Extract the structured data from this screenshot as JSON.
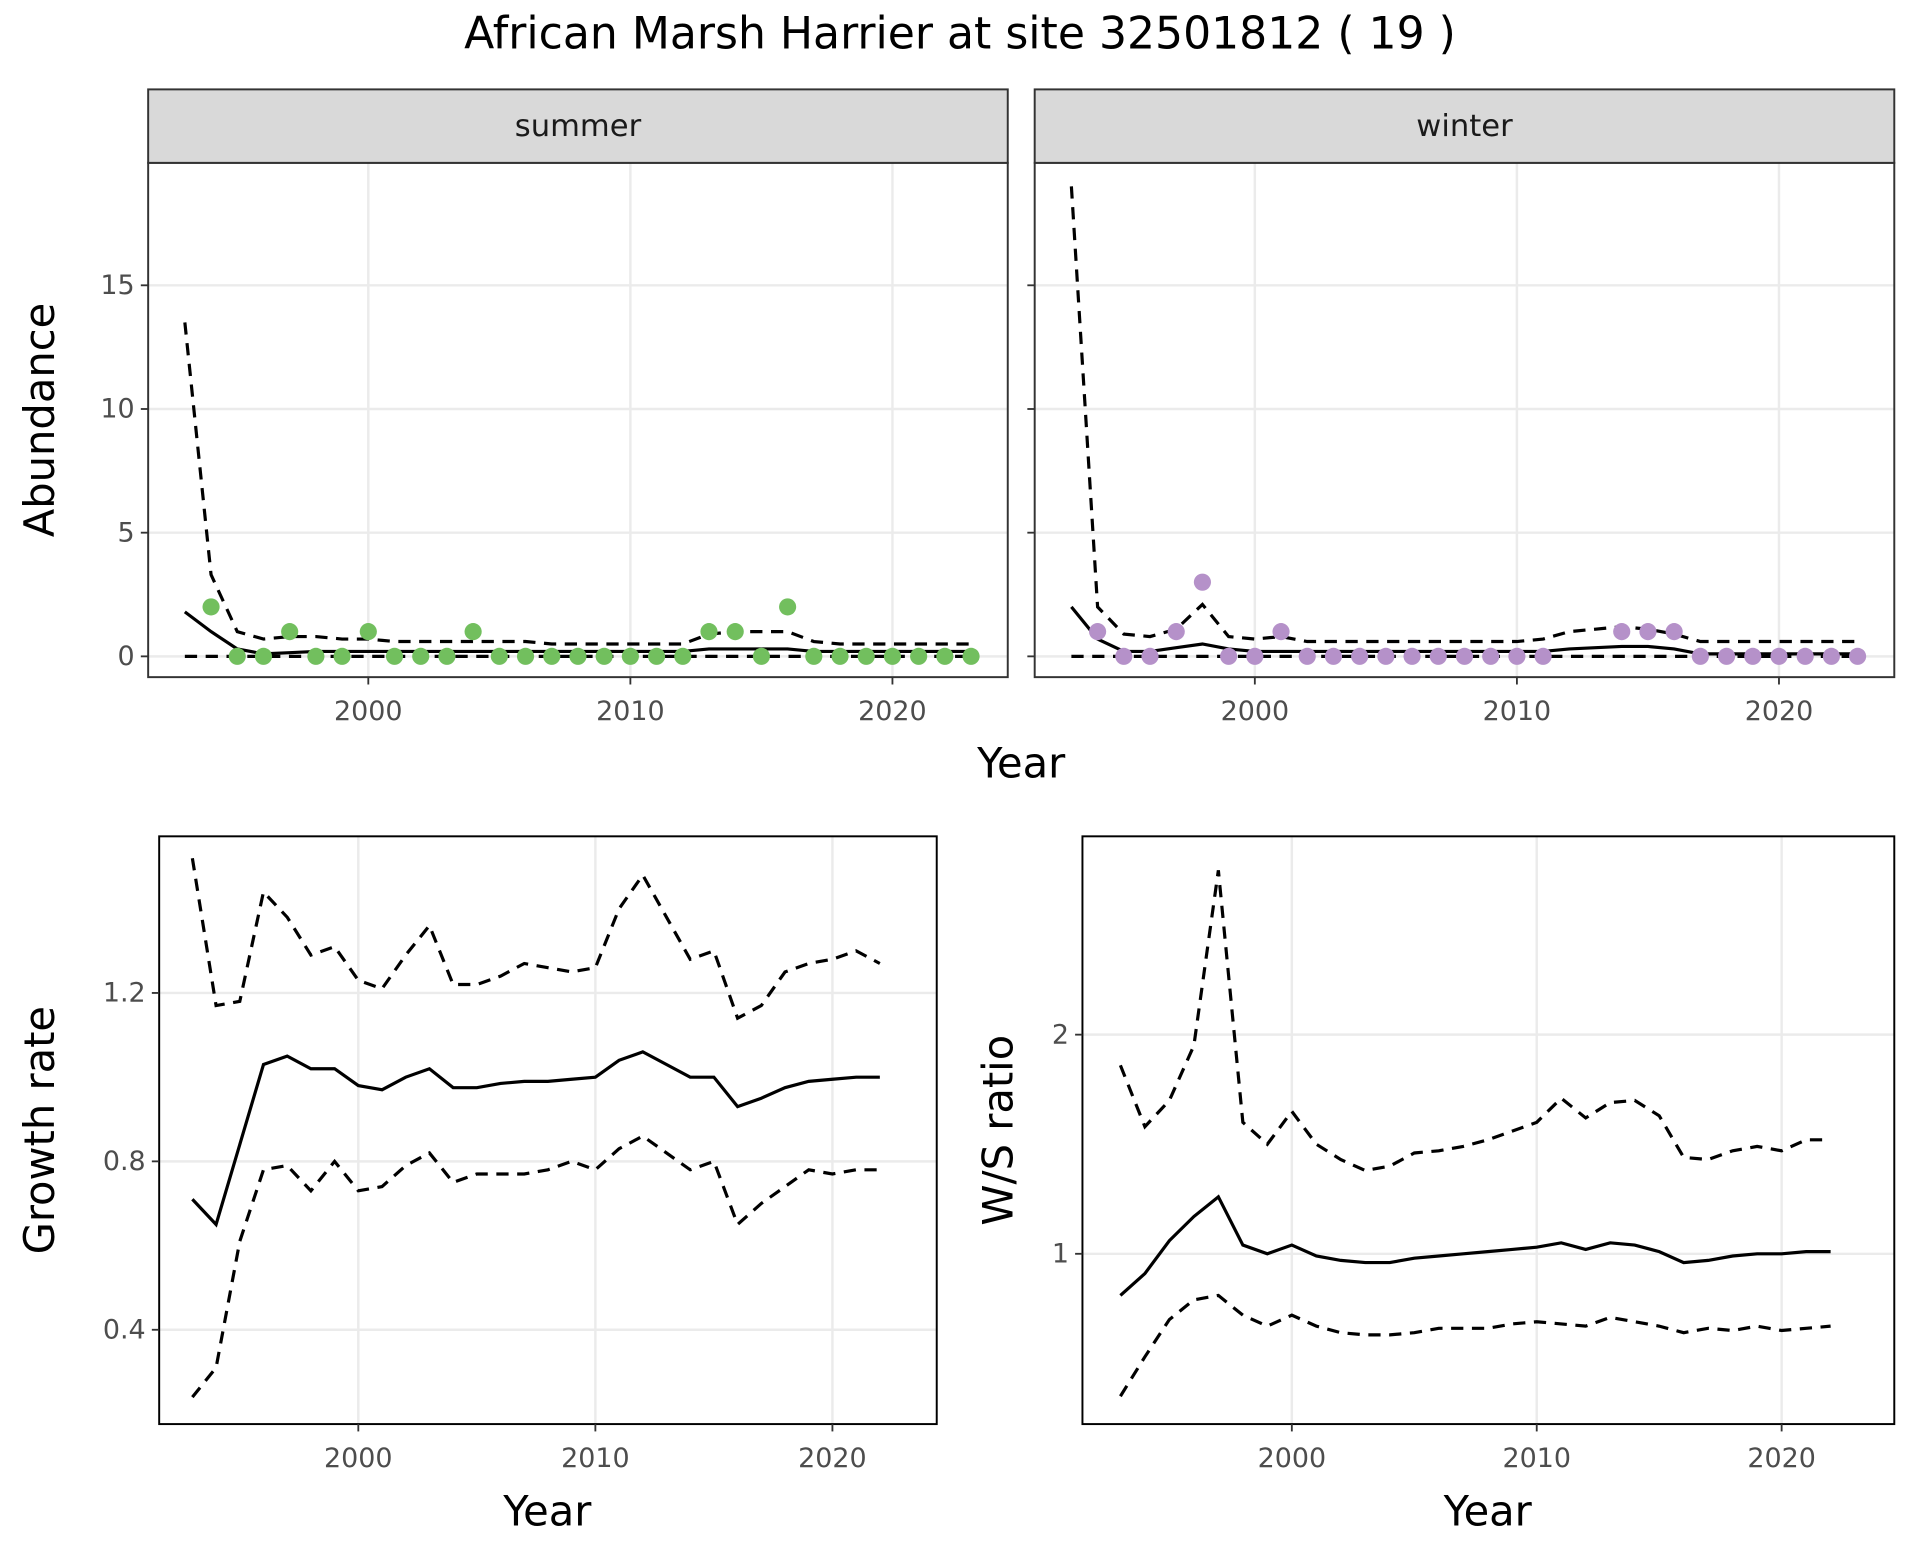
{
  "title": "African Marsh Harrier at site 32501812 ( 19 )",
  "chart_data": [
    {
      "type": "line",
      "x_label": "Year",
      "y_label": "Abundance",
      "x": [
        1993,
        1994,
        1995,
        1996,
        1997,
        1998,
        1999,
        2000,
        2001,
        2002,
        2003,
        2004,
        2005,
        2006,
        2007,
        2008,
        2009,
        2010,
        2011,
        2012,
        2013,
        2014,
        2015,
        2016,
        2017,
        2018,
        2019,
        2020,
        2021,
        2022,
        2023
      ],
      "xlim": [
        1991.6,
        2024.4
      ],
      "xticks": [
        2000,
        2010,
        2020
      ],
      "ylim": [
        -0.84,
        19.95
      ],
      "yticks": [
        0,
        5,
        10,
        15
      ],
      "grid": true,
      "facets": [
        {
          "strip": "summer",
          "series": [
            {
              "mark": "line",
              "dash": false,
              "color": "#000000",
              "values": [
                1.8,
                1.0,
                0.3,
                0.1,
                0.15,
                0.2,
                0.2,
                0.2,
                0.2,
                0.2,
                0.2,
                0.2,
                0.2,
                0.2,
                0.2,
                0.2,
                0.2,
                0.2,
                0.2,
                0.2,
                0.3,
                0.3,
                0.3,
                0.3,
                0.2,
                0.2,
                0.2,
                0.2,
                0.2,
                0.2,
                0.2
              ]
            },
            {
              "mark": "line",
              "dash": true,
              "color": "#000000",
              "values": [
                13.5,
                3.3,
                1.0,
                0.7,
                0.8,
                0.8,
                0.7,
                0.7,
                0.6,
                0.6,
                0.6,
                0.6,
                0.6,
                0.6,
                0.5,
                0.5,
                0.5,
                0.5,
                0.5,
                0.5,
                0.9,
                1.0,
                1.0,
                1.0,
                0.6,
                0.5,
                0.5,
                0.5,
                0.5,
                0.5,
                0.5
              ]
            },
            {
              "mark": "line",
              "dash": true,
              "color": "#000000",
              "values": [
                0,
                0,
                0,
                0,
                0,
                0,
                0,
                0,
                0,
                0,
                0,
                0,
                0,
                0,
                0,
                0,
                0,
                0,
                0,
                0,
                0,
                0,
                0,
                0,
                0,
                0,
                0,
                0,
                0,
                0,
                0
              ]
            },
            {
              "mark": "point",
              "color": "#72bf5e",
              "values": [
                null,
                2,
                0,
                0,
                1,
                0,
                0,
                1,
                0,
                0,
                0,
                1,
                0,
                0,
                0,
                0,
                0,
                0,
                0,
                0,
                1,
                1,
                0,
                2,
                0,
                0,
                0,
                0,
                0,
                0,
                0
              ]
            }
          ]
        },
        {
          "strip": "winter",
          "series": [
            {
              "mark": "line",
              "dash": false,
              "color": "#000000",
              "values": [
                2.0,
                0.7,
                0.2,
                0.2,
                0.35,
                0.5,
                0.3,
                0.2,
                0.2,
                0.2,
                0.2,
                0.2,
                0.2,
                0.2,
                0.2,
                0.2,
                0.2,
                0.2,
                0.2,
                0.3,
                0.35,
                0.4,
                0.4,
                0.3,
                0.1,
                0.1,
                0.1,
                0.1,
                0.1,
                0.1,
                0.1
              ]
            },
            {
              "mark": "line",
              "dash": true,
              "color": "#000000",
              "values": [
                19,
                2.0,
                0.9,
                0.8,
                1.1,
                2.1,
                0.8,
                0.7,
                0.8,
                0.6,
                0.6,
                0.6,
                0.6,
                0.6,
                0.6,
                0.6,
                0.6,
                0.6,
                0.7,
                1.0,
                1.1,
                1.2,
                1.1,
                0.9,
                0.6,
                0.6,
                0.6,
                0.6,
                0.6,
                0.6,
                0.6
              ]
            },
            {
              "mark": "line",
              "dash": true,
              "color": "#000000",
              "values": [
                0,
                0,
                0,
                0,
                0,
                0,
                0,
                0,
                0,
                0,
                0,
                0,
                0,
                0,
                0,
                0,
                0,
                0,
                0,
                0,
                0,
                0,
                0,
                0,
                0,
                0,
                0,
                0,
                0,
                0,
                0
              ]
            },
            {
              "mark": "point",
              "color": "#b591c9",
              "values": [
                null,
                1,
                0,
                0,
                1,
                3,
                0,
                0,
                1,
                0,
                0,
                0,
                0,
                0,
                0,
                0,
                0,
                0,
                0,
                null,
                null,
                1,
                1,
                1,
                0,
                0,
                0,
                0,
                0,
                0,
                0
              ]
            }
          ]
        }
      ]
    },
    {
      "type": "line",
      "x_label": "Year",
      "y_label": "Growth rate",
      "x": [
        1993,
        1994,
        1995,
        1996,
        1997,
        1998,
        1999,
        2000,
        2001,
        2002,
        2003,
        2004,
        2005,
        2006,
        2007,
        2008,
        2009,
        2010,
        2011,
        2012,
        2013,
        2014,
        2015,
        2016,
        2017,
        2018,
        2019,
        2020,
        2021,
        2022
      ],
      "xlim": [
        1991.6,
        2024.4
      ],
      "xticks": [
        2000,
        2010,
        2020
      ],
      "ylim": [
        0.176,
        1.572
      ],
      "yticks": [
        0.4,
        0.8,
        1.2
      ],
      "grid": true,
      "series": [
        {
          "mark": "line",
          "dash": false,
          "color": "#000000",
          "values": [
            0.71,
            0.65,
            0.84,
            1.03,
            1.05,
            1.02,
            1.02,
            0.98,
            0.97,
            1.0,
            1.02,
            0.975,
            0.975,
            0.985,
            0.99,
            0.99,
            0.995,
            1.0,
            1.04,
            1.06,
            1.03,
            1.0,
            1.0,
            0.93,
            0.95,
            0.975,
            0.99,
            0.995,
            1.0,
            1.0
          ]
        },
        {
          "mark": "line",
          "dash": true,
          "color": "#000000",
          "values": [
            1.52,
            1.17,
            1.18,
            1.44,
            1.38,
            1.29,
            1.31,
            1.23,
            1.21,
            1.29,
            1.36,
            1.22,
            1.22,
            1.24,
            1.27,
            1.26,
            1.25,
            1.26,
            1.4,
            1.48,
            1.38,
            1.28,
            1.3,
            1.14,
            1.17,
            1.25,
            1.27,
            1.28,
            1.3,
            1.27
          ]
        },
        {
          "mark": "line",
          "dash": true,
          "color": "#000000",
          "values": [
            0.24,
            0.31,
            0.61,
            0.78,
            0.79,
            0.73,
            0.8,
            0.73,
            0.74,
            0.79,
            0.82,
            0.75,
            0.77,
            0.77,
            0.77,
            0.78,
            0.8,
            0.78,
            0.83,
            0.86,
            0.82,
            0.78,
            0.8,
            0.65,
            0.7,
            0.74,
            0.78,
            0.77,
            0.78,
            0.78
          ]
        }
      ]
    },
    {
      "type": "line",
      "x_label": "Year",
      "y_label": "W/S ratio",
      "x": [
        1993,
        1994,
        1995,
        1996,
        1997,
        1998,
        1999,
        2000,
        2001,
        2002,
        2003,
        2004,
        2005,
        2006,
        2007,
        2008,
        2009,
        2010,
        2011,
        2012,
        2013,
        2014,
        2015,
        2016,
        2017,
        2018,
        2019,
        2020,
        2021,
        2022
      ],
      "xlim": [
        1991.45,
        2024.6
      ],
      "xticks": [
        2000,
        2010,
        2020
      ],
      "ylim": [
        0.223,
        2.905
      ],
      "yticks": [
        1,
        2
      ],
      "grid": true,
      "series": [
        {
          "mark": "line",
          "dash": false,
          "color": "#000000",
          "values": [
            0.81,
            0.91,
            1.06,
            1.17,
            1.26,
            1.04,
            1.0,
            1.04,
            0.99,
            0.97,
            0.96,
            0.96,
            0.98,
            0.99,
            1.0,
            1.01,
            1.02,
            1.03,
            1.05,
            1.02,
            1.05,
            1.04,
            1.01,
            0.96,
            0.97,
            0.99,
            1.0,
            1.0,
            1.01,
            1.01
          ]
        },
        {
          "mark": "line",
          "dash": true,
          "color": "#000000",
          "values": [
            1.86,
            1.58,
            1.7,
            1.95,
            2.75,
            1.6,
            1.5,
            1.65,
            1.5,
            1.43,
            1.38,
            1.4,
            1.46,
            1.47,
            1.49,
            1.52,
            1.56,
            1.6,
            1.71,
            1.62,
            1.69,
            1.7,
            1.63,
            1.44,
            1.43,
            1.47,
            1.49,
            1.47,
            1.52,
            1.52
          ]
        },
        {
          "mark": "line",
          "dash": true,
          "color": "#000000",
          "values": [
            0.35,
            0.53,
            0.7,
            0.79,
            0.81,
            0.72,
            0.67,
            0.72,
            0.67,
            0.64,
            0.63,
            0.63,
            0.64,
            0.66,
            0.66,
            0.66,
            0.68,
            0.69,
            0.68,
            0.67,
            0.71,
            0.69,
            0.67,
            0.64,
            0.66,
            0.65,
            0.67,
            0.65,
            0.66,
            0.67
          ]
        }
      ]
    }
  ]
}
